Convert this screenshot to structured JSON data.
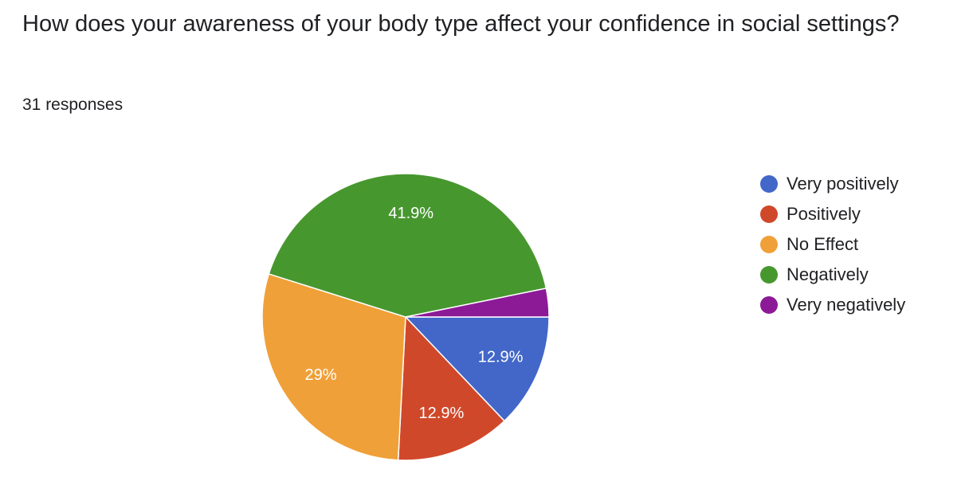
{
  "header": {
    "title": "How does your awareness of your body type affect your confidence in social settings?",
    "responses": "31 responses"
  },
  "chart_data": {
    "type": "pie",
    "categories": [
      "Very positively",
      "Positively",
      "No Effect",
      "Negatively",
      "Very negatively"
    ],
    "values": [
      12.9,
      12.9,
      29,
      41.9,
      3.2
    ],
    "value_labels": [
      "12.9%",
      "12.9%",
      "29%",
      "41.9%",
      null
    ],
    "colors": [
      "#4267c9",
      "#d0482a",
      "#f0a038",
      "#47972f",
      "#8c1a96"
    ],
    "legend": "right"
  }
}
